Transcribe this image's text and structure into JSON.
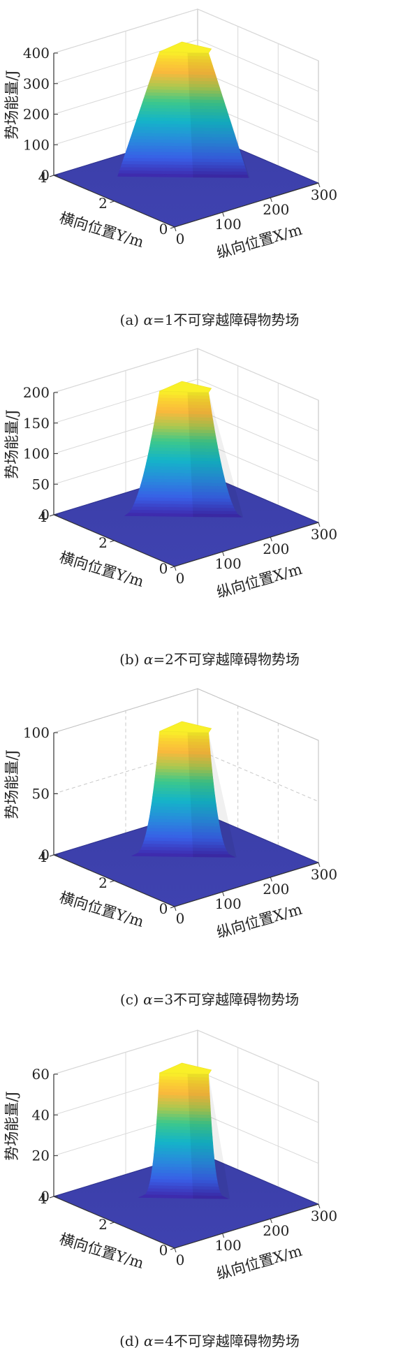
{
  "chart_data": [
    {
      "type": "surface3d",
      "caption_prefix": "(a) ",
      "alpha_symbol": "α",
      "caption_rest": "=1不可穿越障碍物势场",
      "zlabel": "势场能量/J",
      "ylabel": "横向位置Y/m",
      "xlabel": "纵向位置X/m",
      "x_ticks": [
        "0",
        "100",
        "200",
        "300"
      ],
      "y_ticks": [
        "0",
        "2",
        "4"
      ],
      "z_ticks": [
        "0",
        "100",
        "200",
        "300",
        "400"
      ],
      "xlim": [
        0,
        300
      ],
      "ylim": [
        0,
        4
      ],
      "zlim": [
        0,
        400
      ],
      "peak_value": 400,
      "grid": "solid"
    },
    {
      "type": "surface3d",
      "caption_prefix": "(b) ",
      "alpha_symbol": "α",
      "caption_rest": "=2不可穿越障碍物势场",
      "zlabel": "势场能量/J",
      "ylabel": "横向位置Y/m",
      "xlabel": "纵向位置X/m",
      "x_ticks": [
        "0",
        "100",
        "200",
        "300"
      ],
      "y_ticks": [
        "0",
        "2",
        "4"
      ],
      "z_ticks": [
        "0",
        "50",
        "100",
        "150",
        "200"
      ],
      "xlim": [
        0,
        300
      ],
      "ylim": [
        0,
        4
      ],
      "zlim": [
        0,
        200
      ],
      "peak_value": 200,
      "grid": "solid"
    },
    {
      "type": "surface3d",
      "caption_prefix": "(c) ",
      "alpha_symbol": "α",
      "caption_rest": "=3不可穿越障碍物势场",
      "zlabel": "势场能量/J",
      "ylabel": "横向位置Y/m",
      "xlabel": "纵向位置X/m",
      "x_ticks": [
        "0",
        "100",
        "200",
        "300"
      ],
      "y_ticks": [
        "0",
        "2",
        "4"
      ],
      "z_ticks": [
        "0",
        "50",
        "100"
      ],
      "xlim": [
        0,
        300
      ],
      "ylim": [
        0,
        4
      ],
      "zlim": [
        0,
        100
      ],
      "peak_value": 100,
      "grid": "dashed"
    },
    {
      "type": "surface3d",
      "caption_prefix": "(d) ",
      "alpha_symbol": "α",
      "caption_rest": "=4不可穿越障碍物势场",
      "zlabel": "势场能量/J",
      "ylabel": "横向位置Y/m",
      "xlabel": "纵向位置X/m",
      "x_ticks": [
        "0",
        "100",
        "200",
        "300"
      ],
      "y_ticks": [
        "0",
        "2",
        "4"
      ],
      "z_ticks": [
        "0",
        "20",
        "40",
        "60"
      ],
      "xlim": [
        0,
        300
      ],
      "ylim": [
        0,
        4
      ],
      "zlim": [
        0,
        60
      ],
      "peak_value": 60,
      "grid": "solid"
    }
  ]
}
